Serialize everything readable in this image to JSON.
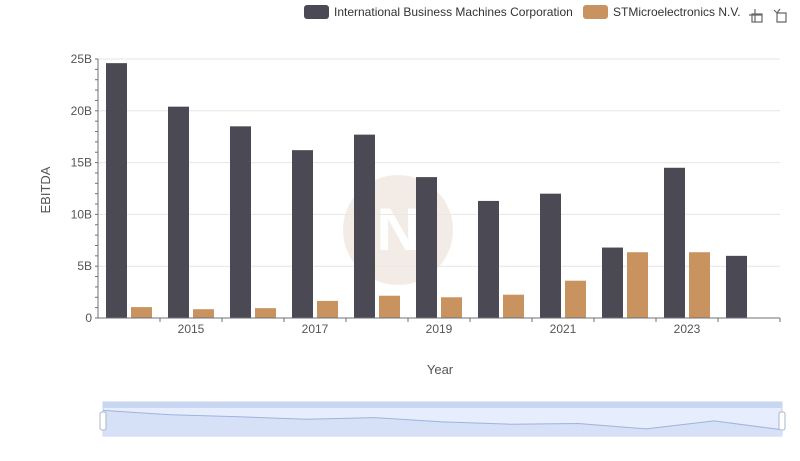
{
  "colors": {
    "ibm": "#4a4954",
    "stm": "#c8935e",
    "grid": "#e6e6e6",
    "axis": "#6e7079",
    "zoom_fill": "#e6edfc",
    "zoom_border": "#c6d1e8",
    "zoom_handle_top": "#c9d6f2",
    "watermark": "#f3ece6"
  },
  "toolbar": {
    "zoom_icon": "zoom-in-icon",
    "restore_icon": "restore-icon"
  },
  "chart_data": {
    "type": "bar",
    "xlabel": "Year",
    "ylabel": "EBITDA",
    "categories": [
      "2014",
      "2015",
      "2016",
      "2017",
      "2018",
      "2019",
      "2020",
      "2021",
      "2022",
      "2023",
      "2024"
    ],
    "x_tick_labels": [
      "2015",
      "2017",
      "2019",
      "2021",
      "2023"
    ],
    "y_ticks": [
      0,
      5000000000,
      10000000000,
      15000000000,
      20000000000,
      25000000000
    ],
    "y_tick_labels": [
      "0",
      "5B",
      "10B",
      "15B",
      "20B",
      "25B"
    ],
    "ylim": [
      0,
      25000000000
    ],
    "grid": true,
    "legend_position": "top-right",
    "series": [
      {
        "name": "International Business Machines Corporation",
        "color": "#4a4954",
        "values": [
          24600000000,
          20400000000,
          18500000000,
          16200000000,
          17700000000,
          13600000000,
          11300000000,
          12000000000,
          6800000000,
          14500000000,
          6000000000
        ]
      },
      {
        "name": "STMicroelectronics N.V.",
        "color": "#c8935e",
        "values": [
          1050000000,
          850000000,
          950000000,
          1650000000,
          2150000000,
          2000000000,
          2250000000,
          3600000000,
          6350000000,
          6350000000,
          null
        ]
      }
    ]
  }
}
